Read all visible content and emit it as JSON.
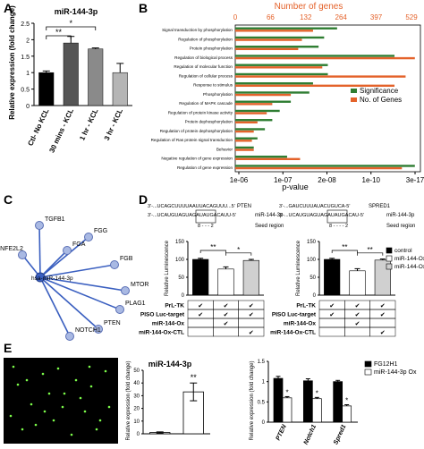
{
  "panels": [
    {
      "letter": "A"
    },
    {
      "letter": "B"
    },
    {
      "letter": "C"
    },
    {
      "letter": "D"
    },
    {
      "letter": "E"
    }
  ],
  "chart_data": [
    {
      "type": "bar",
      "panel": "A",
      "title": "miR-144-3p",
      "ylabel": "Relative expression (fold change)",
      "categories": [
        "Ctl- No KCL",
        "30 mins - KCL",
        "1 hr - KCL",
        "3 hr - KCL"
      ],
      "values": [
        1.0,
        1.9,
        1.72,
        1.0
      ],
      "errors": [
        0.05,
        0.2,
        0.03,
        0.28
      ],
      "colors": [
        "#000000",
        "#555555",
        "#8a8a8a",
        "#b5b5b5"
      ],
      "ylim": [
        0,
        2.5
      ],
      "yticks": [
        "0",
        "0.5",
        "1",
        "1.5",
        "2",
        "2.5"
      ],
      "significance": [
        {
          "pair": [
            0,
            1
          ],
          "label": "**"
        },
        {
          "pair": [
            0,
            2
          ],
          "label": "*"
        }
      ]
    },
    {
      "type": "bar",
      "orientation": "horizontal",
      "panel": "B",
      "top_axis_title": "Number of genes",
      "top_ticks": [
        "0",
        "66",
        "132",
        "264",
        "397",
        "529"
      ],
      "xlabel": "p-value",
      "bottom_ticks": [
        "1e-06",
        "1e-07",
        "2e-08",
        "1e-10",
        "3e-17"
      ],
      "categories": [
        "Signal transduction by phosphorylation",
        "Regulation of phosphorylation",
        "Protein phosphorylation",
        "Regulation of biological process",
        "Regulation of molecular function",
        "Regulation of cellular process",
        "Response to stimulus",
        "Phosphorylation",
        "Regulation of MAPK cascade",
        "Regulation of protein kinase activity",
        "Protein dephosphorylation",
        "Regulation of protein dephosphorylation",
        "Regulation of Ras protein signal transduction",
        "Behavior",
        "Negative regulation of gene expression",
        "Regulation of gene expression"
      ],
      "series": [
        {
          "name": "Significance",
          "color": "#2e7d32",
          "values": [
            0.55,
            0.48,
            0.45,
            0.86,
            0.5,
            0.5,
            0.42,
            0.4,
            0.3,
            0.24,
            0.2,
            0.16,
            0.12,
            0.1,
            0.28,
            0.97
          ]
        },
        {
          "name": "No. of Genes",
          "color": "#e4622a",
          "values": [
            0.42,
            0.36,
            0.34,
            0.97,
            0.47,
            0.92,
            0.86,
            0.3,
            0.2,
            0.17,
            0.12,
            0.1,
            0.09,
            0.1,
            0.35,
            0.9
          ]
        }
      ],
      "legend": "lower-right"
    },
    {
      "type": "network",
      "panel": "C",
      "hub": "hsa-miR-144-3p",
      "nodes": [
        "TGFB1",
        "FGG",
        "NFE2L2",
        "FGA",
        "FGB",
        "MTOR",
        "PLAG1",
        "PTEN",
        "NOTCH1"
      ]
    },
    {
      "type": "bar",
      "panel": "D-left",
      "ylabel": "Relative Luminescence",
      "values": [
        100,
        73,
        97
      ],
      "errors": [
        3,
        6,
        3
      ],
      "colors": [
        "#000000",
        "#ffffff",
        "#d0d0d0"
      ],
      "ylim": [
        0,
        150
      ],
      "yticks": [
        "0",
        "50",
        "100",
        "150"
      ],
      "significance": [
        {
          "pair": [
            0,
            1
          ],
          "label": "**"
        },
        {
          "pair": [
            1,
            2
          ],
          "label": "*"
        }
      ],
      "gene": "PTEN",
      "seq_top": "3'-...UCAGCUUUUAAUUACAGUUU...5'",
      "seq_bottom": "3'-...UCAUGUAGUAGAUAUGACAUU-5'",
      "mirna_label": "miR-144-3p",
      "seed_label": "Seed region",
      "seed_range": "8 - - - 2",
      "table_rows": [
        {
          "label": "PrL-TK",
          "cells": [
            "✔",
            "✔",
            "✔"
          ]
        },
        {
          "label": "PISO Luc-target",
          "cells": [
            "✔",
            "✔",
            "✔"
          ]
        },
        {
          "label": "miR-144-Ox",
          "cells": [
            "",
            "✔",
            ""
          ]
        },
        {
          "label": "miR-144-Ox-CTL",
          "cells": [
            "",
            "",
            "✔"
          ]
        }
      ]
    },
    {
      "type": "bar",
      "panel": "D-right",
      "ylabel": "Relative Luminescence",
      "values": [
        100,
        68,
        98
      ],
      "errors": [
        3,
        6,
        3
      ],
      "colors": [
        "#000000",
        "#ffffff",
        "#d0d0d0"
      ],
      "ylim": [
        0,
        150
      ],
      "yticks": [
        "0",
        "50",
        "100",
        "150"
      ],
      "significance": [
        {
          "pair": [
            0,
            1
          ],
          "label": "**"
        },
        {
          "pair": [
            1,
            2
          ],
          "label": "**"
        }
      ],
      "gene": "SPRED1",
      "seq_top": "3'-...GAUCUUUAUACUGUCA-5'",
      "seq_bottom": "3'-...UCAUGUAGUAGAUAUGACAU-5'",
      "mirna_label": "miR-144-3p",
      "seed_label": "Seed region",
      "seed_range": "8 - - - - 2",
      "legend": [
        "control",
        "miR-144-Ox",
        "miR-144-Ox-Ctl"
      ],
      "table_rows": [
        {
          "label": "PrL-TK",
          "cells": [
            "✔",
            "✔",
            "✔"
          ]
        },
        {
          "label": "PISO Luc-target",
          "cells": [
            "✔",
            "✔",
            "✔"
          ]
        },
        {
          "label": "miR-144-Ox",
          "cells": [
            "",
            "✔",
            ""
          ]
        },
        {
          "label": "miR-144-Ox-CTL",
          "cells": [
            "",
            "",
            "✔"
          ]
        }
      ]
    },
    {
      "type": "bar",
      "panel": "E-middle",
      "title": "miR-144-3p",
      "ylabel": "Relative expression (fold change)",
      "values": [
        1,
        33
      ],
      "errors": [
        0.5,
        7
      ],
      "colors": [
        "#ffffff",
        "#ffffff"
      ],
      "ylim": [
        0,
        50
      ],
      "yticks": [
        "0",
        "10",
        "20",
        "30",
        "40",
        "50"
      ],
      "significance": [
        {
          "index": 1,
          "label": "**"
        }
      ]
    },
    {
      "type": "bar",
      "panel": "E-right",
      "ylabel": "Relative expression (fold change)",
      "categories": [
        "PTEN",
        "Notch1",
        "Spred1"
      ],
      "series": [
        {
          "name": "FG12H1",
          "color": "#000000",
          "values": [
            1.08,
            1.02,
            1.0
          ],
          "errors": [
            0.05,
            0.05,
            0.03
          ]
        },
        {
          "name": "miR-144-3p Ox",
          "color": "#ffffff",
          "values": [
            0.6,
            0.58,
            0.4
          ],
          "errors": [
            0.03,
            0.03,
            0.03
          ]
        }
      ],
      "ylim": [
        0,
        1.5
      ],
      "yticks": [
        "0",
        "0.5",
        "1",
        "1.5"
      ],
      "stars": [
        "*",
        "*",
        "*"
      ],
      "legend": "top-right"
    }
  ]
}
